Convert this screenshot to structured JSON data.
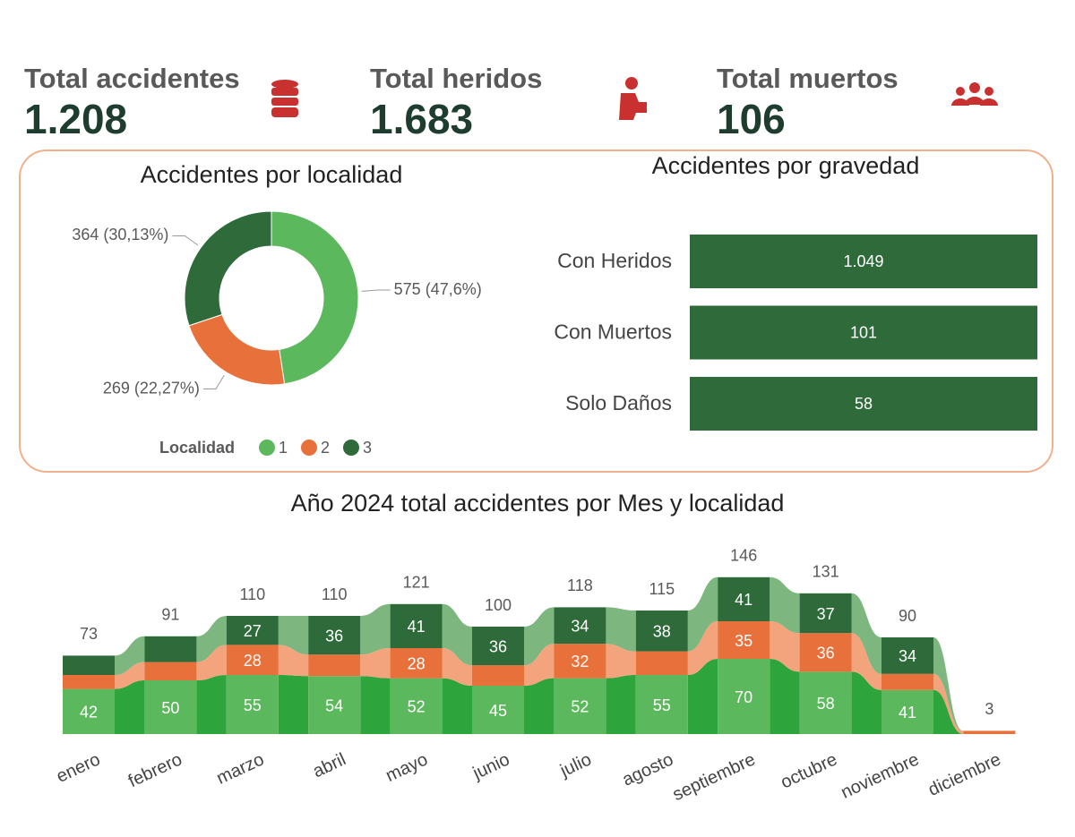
{
  "kpis": [
    {
      "title": "Total accidentes",
      "value": "1.208"
    },
    {
      "title": "Total heridos",
      "value": "1.683"
    },
    {
      "title": "Total muertos",
      "value": "106"
    }
  ],
  "chart_data": [
    {
      "type": "donut",
      "title": "Accidentes por localidad",
      "legend_title": "Localidad",
      "categories": [
        "1",
        "2",
        "3"
      ],
      "values": [
        575,
        269,
        364
      ],
      "value_labels": [
        "575 (47,6%)",
        "269 (22,27%)",
        "364 (30,13%)"
      ],
      "colors": [
        "#5cb85c",
        "#e8703a",
        "#2f6b3a"
      ]
    },
    {
      "type": "table",
      "title": "Accidentes por gravedad",
      "color": "#2f6b3a",
      "rows": [
        [
          "Con Heridos",
          "1.049"
        ],
        [
          "Con Muertos",
          "101"
        ],
        [
          "Solo Daños",
          "58"
        ]
      ]
    },
    {
      "type": "stacked_ribbon",
      "title": "Año 2024 total accidentes por Mes y localidad",
      "categories": [
        "enero",
        "febrero",
        "marzo",
        "abril",
        "mayo",
        "junio",
        "julio",
        "agosto",
        "septiembre",
        "octubre",
        "noviembre",
        "diciembre"
      ],
      "series": [
        {
          "name": "1",
          "color": "#5cb85c",
          "ribbon_color": "#2ea43c",
          "values": [
            42,
            50,
            55,
            54,
            52,
            45,
            52,
            55,
            70,
            58,
            41,
            null
          ]
        },
        {
          "name": "2",
          "color": "#e8703a",
          "ribbon_color": "#f3a47c",
          "values": [
            13,
            17,
            28,
            20,
            28,
            19,
            32,
            22,
            35,
            36,
            15,
            3
          ]
        },
        {
          "name": "3",
          "color": "#2f6b3a",
          "ribbon_color": "#7db77f",
          "values": [
            18,
            24,
            27,
            36,
            41,
            36,
            34,
            38,
            41,
            37,
            34,
            null
          ]
        }
      ],
      "totals": [
        73,
        91,
        110,
        110,
        121,
        100,
        118,
        115,
        146,
        131,
        90,
        3
      ]
    }
  ]
}
